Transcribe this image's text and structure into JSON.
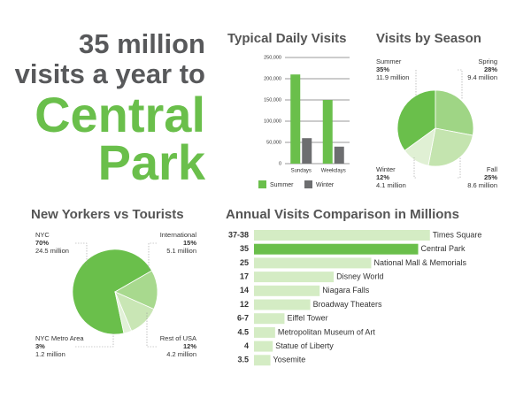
{
  "headline": [
    "35 million",
    "visits a year to",
    "Central",
    "Park"
  ],
  "chart_data": [
    {
      "type": "bar",
      "title": "Typical Daily Visits",
      "categories": [
        "Sundays",
        "Weekdays"
      ],
      "series": [
        {
          "name": "Summer",
          "color": "#6abf4b",
          "values": [
            210000,
            150000
          ]
        },
        {
          "name": "Winter",
          "color": "#6d6e70",
          "values": [
            60000,
            40000
          ]
        }
      ],
      "ylim": [
        0,
        250000
      ],
      "yticks": [
        0,
        {
          "value": 50000,
          "label": "50,000"
        },
        {
          "value": 100000,
          "label": "100,000"
        },
        {
          "value": 150000,
          "label": "150,000"
        },
        {
          "value": 200000,
          "label": "200,000"
        },
        {
          "value": 250000,
          "label": "250,000"
        }
      ],
      "grid": true
    },
    {
      "type": "pie",
      "title": "Visits by Season",
      "categories": [
        "Summer",
        "Spring",
        "Fall",
        "Winter"
      ],
      "values": [
        35,
        28,
        25,
        12
      ],
      "value_labels": [
        "35%",
        "28%",
        "25%",
        "12%"
      ],
      "annotations": [
        "11.9 million",
        "9.4 million",
        "8.6 million",
        "4.1 million"
      ],
      "colors": [
        "#6abf4b",
        "#9fd585",
        "#c4e4af",
        "#e0f0d4"
      ]
    },
    {
      "type": "pie",
      "title": "New Yorkers vs Tourists",
      "categories": [
        "NYC",
        "International",
        "Rest of USA",
        "NYC Metro Area"
      ],
      "values": [
        70,
        15,
        12,
        3
      ],
      "value_labels": [
        "70%",
        "15%",
        "12%",
        "3%"
      ],
      "annotations": [
        "24.5 million",
        "5.1 million",
        "4.2 million",
        "1.2 million"
      ],
      "colors": [
        "#6abf4b",
        "#a8d98e",
        "#c9e6b5",
        "#e2f1d8"
      ]
    },
    {
      "type": "hbar",
      "title": "Annual Visits Comparison in Millions",
      "categories": [
        "Times Square",
        "Central Park",
        "National Mall & Memorials",
        "Disney World",
        "Niagara Falls",
        "Broadway Theaters",
        "Eiffel Tower",
        "Metropolitan Museum of Art",
        "Statue of Liberty",
        "Yosemite"
      ],
      "values": [
        37.5,
        35,
        25,
        17,
        14,
        12,
        6.5,
        4.5,
        4,
        3.5
      ],
      "value_labels": [
        "37-38",
        "35",
        "25",
        "17",
        "14",
        "12",
        "6-7",
        "4.5",
        "4",
        "3.5"
      ],
      "colors": [
        "#d4ecc4",
        "#6abf4b",
        "#d4ecc4",
        "#d4ecc4",
        "#d4ecc4",
        "#d4ecc4",
        "#d4ecc4",
        "#d4ecc4",
        "#d4ecc4",
        "#d4ecc4"
      ]
    }
  ]
}
